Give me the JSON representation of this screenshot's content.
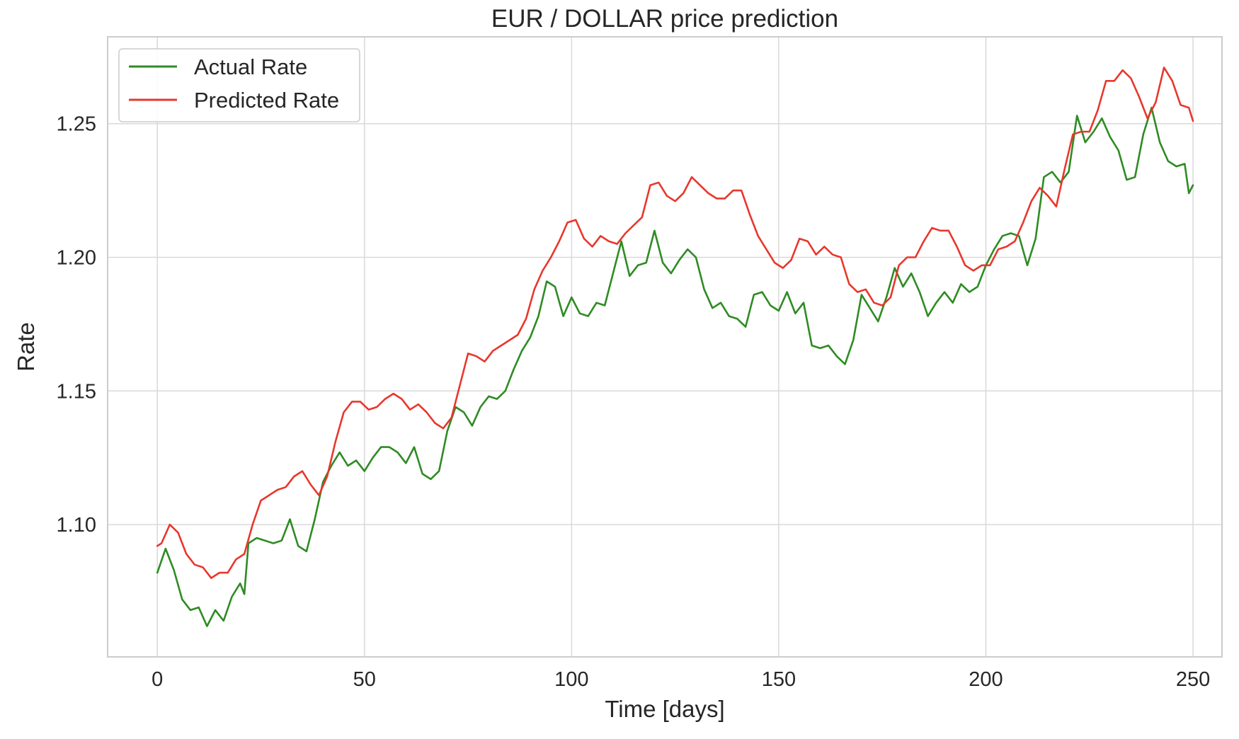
{
  "chart_data": {
    "type": "line",
    "title": "EUR / DOLLAR price prediction",
    "xlabel": "Time [days]",
    "ylabel": "Rate",
    "xlim": [
      -12,
      257
    ],
    "ylim": [
      1.0505,
      1.2825
    ],
    "xticks": [
      0,
      50,
      100,
      150,
      200,
      250
    ],
    "yticks": [
      1.1,
      1.15,
      1.2,
      1.25
    ],
    "xtick_labels": [
      "0",
      "50",
      "100",
      "150",
      "200",
      "250"
    ],
    "ytick_labels": [
      "1.10",
      "1.15",
      "1.20",
      "1.25"
    ],
    "grid": true,
    "legend_position": "upper-left",
    "series": [
      {
        "name": "Actual Rate",
        "color": "#2e8b23",
        "points": [
          [
            0,
            1.082
          ],
          [
            2,
            1.091
          ],
          [
            4,
            1.083
          ],
          [
            6,
            1.072
          ],
          [
            8,
            1.068
          ],
          [
            10,
            1.069
          ],
          [
            12,
            1.062
          ],
          [
            14,
            1.068
          ],
          [
            16,
            1.064
          ],
          [
            18,
            1.073
          ],
          [
            20,
            1.078
          ],
          [
            21,
            1.074
          ],
          [
            22,
            1.093
          ],
          [
            24,
            1.095
          ],
          [
            26,
            1.094
          ],
          [
            28,
            1.093
          ],
          [
            30,
            1.094
          ],
          [
            32,
            1.102
          ],
          [
            34,
            1.092
          ],
          [
            36,
            1.09
          ],
          [
            38,
            1.102
          ],
          [
            40,
            1.116
          ],
          [
            42,
            1.122
          ],
          [
            44,
            1.127
          ],
          [
            46,
            1.122
          ],
          [
            48,
            1.124
          ],
          [
            50,
            1.12
          ],
          [
            52,
            1.125
          ],
          [
            54,
            1.129
          ],
          [
            56,
            1.129
          ],
          [
            58,
            1.127
          ],
          [
            60,
            1.123
          ],
          [
            62,
            1.129
          ],
          [
            64,
            1.119
          ],
          [
            66,
            1.117
          ],
          [
            68,
            1.12
          ],
          [
            70,
            1.135
          ],
          [
            72,
            1.144
          ],
          [
            74,
            1.142
          ],
          [
            76,
            1.137
          ],
          [
            78,
            1.144
          ],
          [
            80,
            1.148
          ],
          [
            82,
            1.147
          ],
          [
            84,
            1.15
          ],
          [
            86,
            1.158
          ],
          [
            88,
            1.165
          ],
          [
            90,
            1.17
          ],
          [
            92,
            1.178
          ],
          [
            94,
            1.191
          ],
          [
            96,
            1.189
          ],
          [
            98,
            1.178
          ],
          [
            100,
            1.185
          ],
          [
            102,
            1.179
          ],
          [
            104,
            1.178
          ],
          [
            106,
            1.183
          ],
          [
            108,
            1.182
          ],
          [
            110,
            1.194
          ],
          [
            112,
            1.206
          ],
          [
            114,
            1.193
          ],
          [
            116,
            1.197
          ],
          [
            118,
            1.198
          ],
          [
            120,
            1.21
          ],
          [
            122,
            1.198
          ],
          [
            124,
            1.194
          ],
          [
            126,
            1.199
          ],
          [
            128,
            1.203
          ],
          [
            130,
            1.2
          ],
          [
            132,
            1.188
          ],
          [
            134,
            1.181
          ],
          [
            136,
            1.183
          ],
          [
            138,
            1.178
          ],
          [
            140,
            1.177
          ],
          [
            142,
            1.174
          ],
          [
            144,
            1.186
          ],
          [
            146,
            1.187
          ],
          [
            148,
            1.182
          ],
          [
            150,
            1.18
          ],
          [
            152,
            1.187
          ],
          [
            154,
            1.179
          ],
          [
            156,
            1.183
          ],
          [
            158,
            1.167
          ],
          [
            160,
            1.166
          ],
          [
            162,
            1.167
          ],
          [
            164,
            1.163
          ],
          [
            166,
            1.16
          ],
          [
            168,
            1.169
          ],
          [
            170,
            1.186
          ],
          [
            172,
            1.181
          ],
          [
            174,
            1.176
          ],
          [
            176,
            1.185
          ],
          [
            178,
            1.196
          ],
          [
            180,
            1.189
          ],
          [
            182,
            1.194
          ],
          [
            184,
            1.187
          ],
          [
            186,
            1.178
          ],
          [
            188,
            1.183
          ],
          [
            190,
            1.187
          ],
          [
            192,
            1.183
          ],
          [
            194,
            1.19
          ],
          [
            196,
            1.187
          ],
          [
            198,
            1.189
          ],
          [
            200,
            1.197
          ],
          [
            202,
            1.203
          ],
          [
            204,
            1.208
          ],
          [
            206,
            1.209
          ],
          [
            208,
            1.208
          ],
          [
            210,
            1.197
          ],
          [
            212,
            1.207
          ],
          [
            214,
            1.23
          ],
          [
            216,
            1.232
          ],
          [
            218,
            1.228
          ],
          [
            220,
            1.232
          ],
          [
            222,
            1.253
          ],
          [
            224,
            1.243
          ],
          [
            226,
            1.247
          ],
          [
            228,
            1.252
          ],
          [
            230,
            1.245
          ],
          [
            232,
            1.24
          ],
          [
            234,
            1.229
          ],
          [
            236,
            1.23
          ],
          [
            238,
            1.246
          ],
          [
            240,
            1.256
          ],
          [
            242,
            1.243
          ],
          [
            244,
            1.236
          ],
          [
            246,
            1.234
          ],
          [
            248,
            1.235
          ],
          [
            249,
            1.224
          ],
          [
            250,
            1.227
          ]
        ]
      },
      {
        "name": "Predicted Rate",
        "color": "#e8372c",
        "points": [
          [
            0,
            1.092
          ],
          [
            1,
            1.093
          ],
          [
            3,
            1.1
          ],
          [
            5,
            1.097
          ],
          [
            7,
            1.089
          ],
          [
            9,
            1.085
          ],
          [
            11,
            1.084
          ],
          [
            13,
            1.08
          ],
          [
            15,
            1.082
          ],
          [
            17,
            1.082
          ],
          [
            19,
            1.087
          ],
          [
            21,
            1.089
          ],
          [
            23,
            1.1
          ],
          [
            25,
            1.109
          ],
          [
            27,
            1.111
          ],
          [
            29,
            1.113
          ],
          [
            31,
            1.114
          ],
          [
            33,
            1.118
          ],
          [
            35,
            1.12
          ],
          [
            37,
            1.115
          ],
          [
            39,
            1.111
          ],
          [
            41,
            1.118
          ],
          [
            43,
            1.131
          ],
          [
            45,
            1.142
          ],
          [
            47,
            1.146
          ],
          [
            49,
            1.146
          ],
          [
            51,
            1.143
          ],
          [
            53,
            1.144
          ],
          [
            55,
            1.147
          ],
          [
            57,
            1.149
          ],
          [
            59,
            1.147
          ],
          [
            61,
            1.143
          ],
          [
            63,
            1.145
          ],
          [
            65,
            1.142
          ],
          [
            67,
            1.138
          ],
          [
            69,
            1.136
          ],
          [
            71,
            1.14
          ],
          [
            73,
            1.152
          ],
          [
            75,
            1.164
          ],
          [
            77,
            1.163
          ],
          [
            79,
            1.161
          ],
          [
            81,
            1.165
          ],
          [
            83,
            1.167
          ],
          [
            85,
            1.169
          ],
          [
            87,
            1.171
          ],
          [
            89,
            1.177
          ],
          [
            91,
            1.188
          ],
          [
            93,
            1.195
          ],
          [
            95,
            1.2
          ],
          [
            97,
            1.206
          ],
          [
            99,
            1.213
          ],
          [
            101,
            1.214
          ],
          [
            103,
            1.207
          ],
          [
            105,
            1.204
          ],
          [
            107,
            1.208
          ],
          [
            109,
            1.206
          ],
          [
            111,
            1.205
          ],
          [
            113,
            1.209
          ],
          [
            115,
            1.212
          ],
          [
            117,
            1.215
          ],
          [
            119,
            1.227
          ],
          [
            121,
            1.228
          ],
          [
            123,
            1.223
          ],
          [
            125,
            1.221
          ],
          [
            127,
            1.224
          ],
          [
            129,
            1.23
          ],
          [
            131,
            1.227
          ],
          [
            133,
            1.224
          ],
          [
            135,
            1.222
          ],
          [
            137,
            1.222
          ],
          [
            139,
            1.225
          ],
          [
            141,
            1.225
          ],
          [
            143,
            1.216
          ],
          [
            145,
            1.208
          ],
          [
            147,
            1.203
          ],
          [
            149,
            1.198
          ],
          [
            151,
            1.196
          ],
          [
            153,
            1.199
          ],
          [
            155,
            1.207
          ],
          [
            157,
            1.206
          ],
          [
            159,
            1.201
          ],
          [
            161,
            1.204
          ],
          [
            163,
            1.201
          ],
          [
            165,
            1.2
          ],
          [
            167,
            1.19
          ],
          [
            169,
            1.187
          ],
          [
            171,
            1.188
          ],
          [
            173,
            1.183
          ],
          [
            175,
            1.182
          ],
          [
            177,
            1.185
          ],
          [
            179,
            1.197
          ],
          [
            181,
            1.2
          ],
          [
            183,
            1.2
          ],
          [
            185,
            1.206
          ],
          [
            187,
            1.211
          ],
          [
            189,
            1.21
          ],
          [
            191,
            1.21
          ],
          [
            193,
            1.204
          ],
          [
            195,
            1.197
          ],
          [
            197,
            1.195
          ],
          [
            199,
            1.197
          ],
          [
            201,
            1.197
          ],
          [
            203,
            1.203
          ],
          [
            205,
            1.204
          ],
          [
            207,
            1.206
          ],
          [
            209,
            1.213
          ],
          [
            211,
            1.221
          ],
          [
            213,
            1.226
          ],
          [
            215,
            1.223
          ],
          [
            217,
            1.219
          ],
          [
            219,
            1.233
          ],
          [
            221,
            1.246
          ],
          [
            223,
            1.247
          ],
          [
            225,
            1.247
          ],
          [
            227,
            1.255
          ],
          [
            229,
            1.266
          ],
          [
            231,
            1.266
          ],
          [
            233,
            1.27
          ],
          [
            235,
            1.267
          ],
          [
            237,
            1.26
          ],
          [
            239,
            1.252
          ],
          [
            241,
            1.258
          ],
          [
            243,
            1.271
          ],
          [
            245,
            1.266
          ],
          [
            247,
            1.257
          ],
          [
            249,
            1.256
          ],
          [
            250,
            1.251
          ]
        ]
      }
    ]
  }
}
